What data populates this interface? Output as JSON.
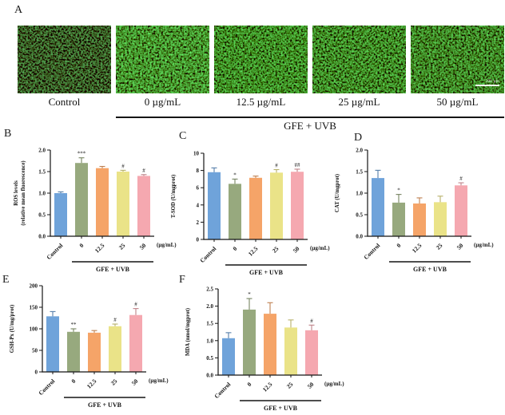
{
  "figure": {
    "panel_a": {
      "letter": "A",
      "images": [
        {
          "label": "Control"
        },
        {
          "label": "0 µg/mL"
        },
        {
          "label": "12.5 µg/mL"
        },
        {
          "label": "25 µg/mL"
        },
        {
          "label": "50 µg/mL"
        }
      ],
      "scale_bar_label": "200 µm",
      "bracket_label": "GFE + UVB"
    },
    "bar_colors": [
      "#6fa3da",
      "#97a97e",
      "#f5a468",
      "#eae388",
      "#f5a8b0"
    ],
    "axis_color": "#141414"
  },
  "chart_data": [
    {
      "panel": "B",
      "type": "bar",
      "categories": [
        "Control",
        "0",
        "12.5",
        "25",
        "50"
      ],
      "values": [
        1.0,
        1.7,
        1.58,
        1.5,
        1.4
      ],
      "errors": [
        0.03,
        0.12,
        0.04,
        0.03,
        0.03
      ],
      "sig": [
        "",
        "***",
        "",
        "#",
        "#"
      ],
      "ylabel_lines": [
        "ROS levels",
        "(relative mean fluorescence)"
      ],
      "ymax": 2.0,
      "ytick_labels": [
        "0.0",
        "0.5",
        "1.0",
        "1.5",
        "2.0"
      ],
      "x_unit": "(µg/mL)",
      "group_label": "GFE + UVB"
    },
    {
      "panel": "C",
      "type": "bar",
      "categories": [
        "Control",
        "0",
        "12.5",
        "25",
        "50"
      ],
      "values": [
        7.8,
        6.45,
        7.15,
        7.75,
        7.85
      ],
      "errors": [
        0.5,
        0.55,
        0.2,
        0.35,
        0.3
      ],
      "sig": [
        "",
        "*",
        "",
        "#",
        "##"
      ],
      "ylabel_lines": [
        "T-SOD (U/mgprot)"
      ],
      "ymax": 10,
      "ytick_labels": [
        "0",
        "2",
        "4",
        "6",
        "8",
        "10"
      ],
      "x_unit": "(µg/mL)",
      "group_label": "GFE + UVB"
    },
    {
      "panel": "D",
      "type": "bar",
      "categories": [
        "Control",
        "0",
        "12.5",
        "25",
        "50"
      ],
      "values": [
        1.35,
        0.78,
        0.76,
        0.79,
        1.18
      ],
      "errors": [
        0.18,
        0.19,
        0.13,
        0.14,
        0.06
      ],
      "sig": [
        "",
        "*",
        "",
        "",
        "#"
      ],
      "ylabel_lines": [
        "CAT (U/mgprot)"
      ],
      "ymax": 2.0,
      "ytick_labels": [
        "0.0",
        "0.5",
        "1.0",
        "1.5",
        "2.0"
      ],
      "x_unit": "(µg/mL)",
      "group_label": "GFE + UVB"
    },
    {
      "panel": "E",
      "type": "bar",
      "categories": [
        "Control",
        "0",
        "12.5",
        "25",
        "50"
      ],
      "values": [
        129,
        93,
        91,
        106,
        132
      ],
      "errors": [
        11,
        7,
        5,
        5,
        15
      ],
      "sig": [
        "",
        "**",
        "",
        "#",
        "#"
      ],
      "ylabel_lines": [
        "GSH-Px (U/mg/prot)"
      ],
      "ymax": 200,
      "ytick_labels": [
        "0",
        "50",
        "100",
        "150",
        "200"
      ],
      "x_unit": "(µg/mL)",
      "group_label": "GFE + UVB"
    },
    {
      "panel": "F",
      "type": "bar",
      "categories": [
        "Control",
        "0",
        "12.5",
        "25",
        "50"
      ],
      "values": [
        1.07,
        1.9,
        1.78,
        1.38,
        1.3
      ],
      "errors": [
        0.16,
        0.32,
        0.32,
        0.22,
        0.15
      ],
      "sig": [
        "",
        "*",
        "",
        "",
        "#"
      ],
      "ylabel_lines": [
        "MDA (nmol/mgprot)"
      ],
      "ymax": 2.5,
      "ytick_labels": [
        "0.0",
        "0.5",
        "1.0",
        "1.5",
        "2.0",
        "2.5"
      ],
      "x_unit": "(µg/mL)",
      "group_label": "GFE + UVB"
    }
  ]
}
